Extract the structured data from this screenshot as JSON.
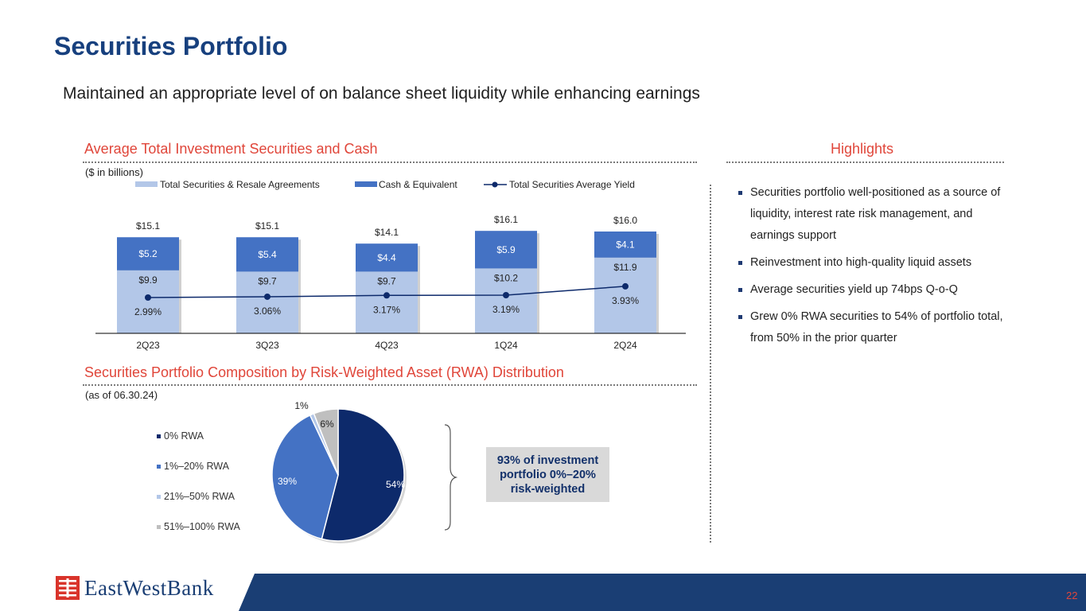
{
  "page": {
    "title": "Securities Portfolio",
    "subtitle": "Maintained an appropriate level of on balance sheet liquidity while enhancing earnings",
    "page_number": "22"
  },
  "colors": {
    "navy": "#17407e",
    "red": "#e0463a",
    "light_blue": "#b3c7e8",
    "mid_blue": "#4472c4",
    "dark_navy": "#0d2a6b",
    "grey": "#bfbfbf",
    "footer": "#1a3e74"
  },
  "bar_section": {
    "heading": "Average Total Investment Securities and Cash",
    "units_note": "($ in billions)"
  },
  "pie_section": {
    "heading": "Securities Portfolio Composition by Risk-Weighted Asset (RWA) Distribution",
    "as_of_note": "(as of 06.30.24)",
    "callout": "93% of investment portfolio 0%–20% risk-weighted"
  },
  "highlights": {
    "heading": "Highlights",
    "items": [
      "Securities portfolio well-positioned as a source of liquidity, interest rate risk management, and earnings support",
      "Reinvestment into high-quality liquid assets",
      "Average securities yield up 74bps Q-o-Q",
      "Grew 0% RWA securities to 54% of portfolio total, from 50% in the prior quarter"
    ]
  },
  "logo": {
    "text": "EastWestBank"
  },
  "chart_data": [
    {
      "type": "bar",
      "stacked": true,
      "categories": [
        "2Q23",
        "3Q23",
        "4Q23",
        "1Q24",
        "2Q24"
      ],
      "series": [
        {
          "name": "Total Securities & Resale Agreements",
          "values": [
            9.9,
            9.7,
            9.7,
            10.2,
            11.9
          ],
          "labels": [
            "$9.9",
            "$9.7",
            "$9.7",
            "$10.2",
            "$11.9"
          ],
          "color": "#b3c7e8"
        },
        {
          "name": "Cash & Equivalent",
          "values": [
            5.2,
            5.4,
            4.4,
            5.9,
            4.1
          ],
          "labels": [
            "$5.2",
            "$5.4",
            "$4.4",
            "$5.9",
            "$4.1"
          ],
          "color": "#4472c4"
        }
      ],
      "totals": [
        15.1,
        15.1,
        14.1,
        16.1,
        16.0
      ],
      "total_labels": [
        "$15.1",
        "$15.1",
        "$14.1",
        "$16.1",
        "$16.0"
      ],
      "line_series": {
        "name": "Total Securities Average Yield",
        "values": [
          2.99,
          3.06,
          3.17,
          3.19,
          3.93
        ],
        "labels": [
          "2.99%",
          "3.06%",
          "3.17%",
          "3.19%",
          "3.93%"
        ],
        "color": "#0d2a6b"
      },
      "legend": [
        "Total Securities & Resale Agreements",
        "Cash & Equivalent",
        "Total Securities Average Yield"
      ],
      "title": "Average Total Investment Securities and Cash",
      "ylabel": "($ in billions)",
      "ylim": [
        0,
        17
      ]
    },
    {
      "type": "pie",
      "labels": [
        "0% RWA",
        "1%–20% RWA",
        "21%–50% RWA",
        "51%–100% RWA"
      ],
      "values": [
        54,
        39,
        1,
        6
      ],
      "value_labels": [
        "54%",
        "39%",
        "1%",
        "6%"
      ],
      "colors": [
        "#0d2a6b",
        "#4472c4",
        "#b3c7e8",
        "#bfbfbf"
      ],
      "title": "Securities Portfolio Composition by Risk-Weighted Asset (RWA) Distribution"
    }
  ]
}
